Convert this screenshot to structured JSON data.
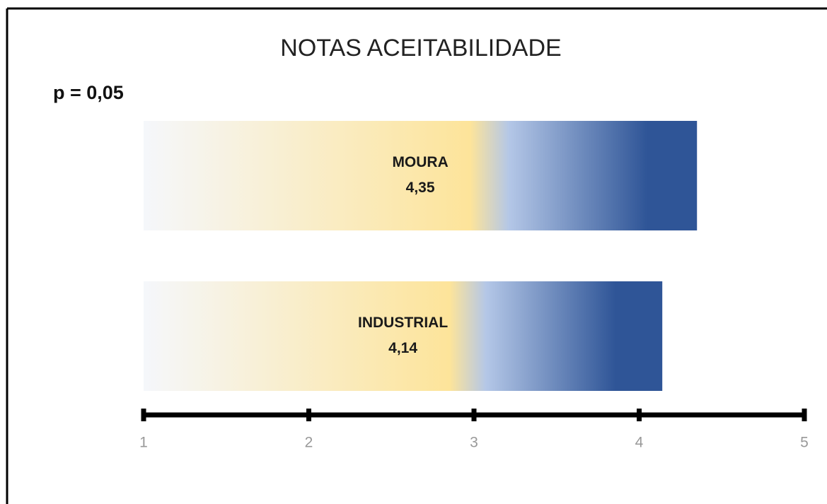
{
  "chart_data": {
    "type": "bar",
    "orientation": "horizontal",
    "title": "NOTAS ACEITABILIDADE",
    "annotation": "p = 0,05",
    "categories": [
      "MOURA",
      "INDUSTRIAL"
    ],
    "values": [
      4.35,
      4.14
    ],
    "value_labels": [
      "4,35",
      "4,14"
    ],
    "gradient": [
      "#f5f7fb",
      "#fde49a",
      "#b4c7e7",
      "#2f5597"
    ],
    "xlim": [
      1,
      5
    ],
    "xticks": [
      1,
      2,
      3,
      4,
      5
    ],
    "grid": false
  }
}
